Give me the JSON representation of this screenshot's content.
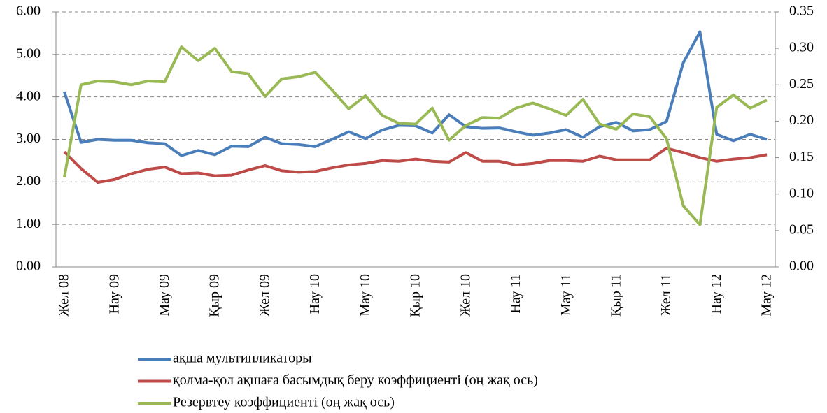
{
  "chart_data": {
    "type": "line",
    "categories": [
      "Жел 08",
      null,
      null,
      "Нау 09",
      null,
      null,
      "Мау 09",
      null,
      null,
      "Қыр 09",
      null,
      null,
      "Жел 09",
      null,
      null,
      "Нау 10",
      null,
      null,
      "Мау 10",
      null,
      null,
      "Қыр 10",
      null,
      null,
      "Жел 10",
      null,
      null,
      "Нау 11",
      null,
      null,
      "Мау 11",
      null,
      null,
      "Қыр 11",
      null,
      null,
      "Жел 11",
      null,
      null,
      "Нау 12",
      null,
      null,
      "Мау 12"
    ],
    "series": [
      {
        "name": "ақша мультипликаторы",
        "color": "#4a7ebb",
        "values": [
          4.12,
          2.93,
          3.0,
          2.98,
          2.98,
          2.92,
          2.9,
          2.62,
          2.74,
          2.64,
          2.84,
          2.83,
          3.05,
          2.9,
          2.88,
          2.83,
          3.0,
          3.18,
          3.02,
          3.22,
          3.33,
          3.32,
          3.15,
          3.58,
          3.3,
          3.26,
          3.27,
          3.18,
          3.1,
          3.15,
          3.23,
          3.05,
          3.3,
          3.4,
          3.2,
          3.23,
          3.42,
          4.8,
          5.53,
          3.12,
          2.97,
          3.12,
          3.0
        ]
      },
      {
        "name": "қолма-қол ақшаға басымдық беру коэффициенті (оң жақ ось)",
        "color": "#be4b48",
        "axis": "y2",
        "values": [
          0.158,
          0.135,
          0.116,
          0.12,
          0.128,
          0.134,
          0.137,
          0.128,
          0.129,
          0.125,
          0.126,
          0.133,
          0.139,
          0.132,
          0.13,
          0.131,
          0.136,
          0.14,
          0.142,
          0.146,
          0.145,
          0.148,
          0.145,
          0.144,
          0.157,
          0.145,
          0.145,
          0.14,
          0.142,
          0.146,
          0.146,
          0.145,
          0.152,
          0.147,
          0.147,
          0.147,
          0.163,
          0.157,
          0.15,
          0.145,
          0.148,
          0.15,
          0.154
        ]
      },
      {
        "name": "Резервтеу коэффициенті (оң жақ ось)",
        "color": "#98b954",
        "axis": "y2",
        "values": [
          0.123,
          0.25,
          0.255,
          0.254,
          0.25,
          0.255,
          0.254,
          0.302,
          0.283,
          0.3,
          0.268,
          0.265,
          0.234,
          0.258,
          0.261,
          0.267,
          0.243,
          0.217,
          0.235,
          0.208,
          0.197,
          0.196,
          0.218,
          0.174,
          0.194,
          0.205,
          0.204,
          0.218,
          0.225,
          0.217,
          0.208,
          0.23,
          0.196,
          0.189,
          0.21,
          0.206,
          0.176,
          0.084,
          0.058,
          0.219,
          0.236,
          0.218,
          0.229
        ]
      }
    ],
    "ylim": [
      0,
      6
    ],
    "yticks": [
      {
        "value": 0,
        "label": "0.00"
      },
      {
        "value": 1,
        "label": "1.00"
      },
      {
        "value": 2,
        "label": "2.00"
      },
      {
        "value": 3,
        "label": "3.00"
      },
      {
        "value": 4,
        "label": "4.00"
      },
      {
        "value": 5,
        "label": "5.00"
      },
      {
        "value": 6,
        "label": "6.00"
      }
    ],
    "y2lim": [
      0,
      0.35
    ],
    "y2ticks": [
      {
        "value": 0,
        "label": "0.00"
      },
      {
        "value": 0.05,
        "label": "0.05"
      },
      {
        "value": 0.1,
        "label": "0.10"
      },
      {
        "value": 0.15,
        "label": "0.15"
      },
      {
        "value": 0.2,
        "label": "0.20"
      },
      {
        "value": 0.25,
        "label": "0.25"
      },
      {
        "value": 0.3,
        "label": "0.30"
      },
      {
        "value": 0.35,
        "label": "0.35"
      }
    ],
    "grid": true,
    "legend": "bottom"
  }
}
